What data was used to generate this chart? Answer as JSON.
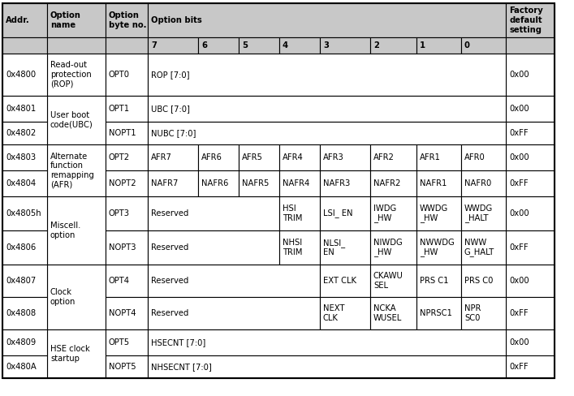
{
  "header_bg": "#C8C8C8",
  "cell_bg": "#FFFFFF",
  "border_color": "#000000",
  "text_color": "#000000",
  "font_size": 7.2,
  "rows": [
    {
      "addr": "0x4800",
      "name": "Read-out\nprotection\n(ROP)",
      "opt": "OPT0",
      "b7": "ROP [7:0]",
      "b6": "",
      "b5": "",
      "b4": "",
      "b3": "",
      "b2": "",
      "b1": "",
      "b0": "",
      "default": "0x00",
      "span7": true,
      "rowspan_name": 1
    },
    {
      "addr": "0x4801",
      "name": "User boot\ncode(UBC)",
      "opt": "OPT1",
      "b7": "UBC [7:0]",
      "b6": "",
      "b5": "",
      "b4": "",
      "b3": "",
      "b2": "",
      "b1": "",
      "b0": "",
      "default": "0x00",
      "span7": true,
      "rowspan_name": 2
    },
    {
      "addr": "0x4802",
      "name": "",
      "opt": "NOPT1",
      "b7": "NUBC [7:0]",
      "b6": "",
      "b5": "",
      "b4": "",
      "b3": "",
      "b2": "",
      "b1": "",
      "b0": "",
      "default": "0xFF",
      "span7": true,
      "rowspan_name": 0
    },
    {
      "addr": "0x4803",
      "name": "Alternate\nfunction\nremapping\n(AFR)",
      "opt": "OPT2",
      "b7": "AFR7",
      "b6": "AFR6",
      "b5": "AFR5",
      "b4": "AFR4",
      "b3": "AFR3",
      "b2": "AFR2",
      "b1": "AFR1",
      "b0": "AFR0",
      "default": "0x00",
      "span7": false,
      "rowspan_name": 2
    },
    {
      "addr": "0x4804",
      "name": "",
      "opt": "NOPT2",
      "b7": "NAFR7",
      "b6": "NAFR6",
      "b5": "NAFR5",
      "b4": "NAFR4",
      "b3": "NAFR3",
      "b2": "NAFR2",
      "b1": "NAFR1",
      "b0": "NAFR0",
      "default": "0xFF",
      "span7": false,
      "rowspan_name": 0
    },
    {
      "addr": "0x4805h",
      "name": "Miscell.\noption",
      "opt": "OPT3",
      "b7": "Reserved",
      "b6": "",
      "b5": "",
      "b4": "HSI\nTRIM",
      "b3": "LSI_ EN",
      "b2": "IWDG\n_HW",
      "b1": "WWDG\n_HW",
      "b0": "WWDG\n_HALT",
      "default": "0x00",
      "span7": false,
      "span_reserved": true,
      "reserved_span": 3,
      "rowspan_name": 2
    },
    {
      "addr": "0x4806",
      "name": "",
      "opt": "NOPT3",
      "b7": "Reserved",
      "b6": "",
      "b5": "",
      "b4": "NHSI\nTRIM",
      "b3": "NLSI_\nEN",
      "b2": "NIWDG\n_HW",
      "b1": "NWWDG\n_HW",
      "b0": "NWW\nG_HALT",
      "default": "0xFF",
      "span7": false,
      "span_reserved": true,
      "reserved_span": 3,
      "rowspan_name": 0
    },
    {
      "addr": "0x4807",
      "name": "Clock\noption",
      "opt": "OPT4",
      "b7": "Reserved",
      "b6": "",
      "b5": "",
      "b4": "",
      "b3": "EXT CLK",
      "b2": "CKAWU\nSEL",
      "b1": "PRS C1",
      "b0": "PRS C0",
      "default": "0x00",
      "span7": false,
      "span_reserved": true,
      "reserved_span": 4,
      "rowspan_name": 2
    },
    {
      "addr": "0x4808",
      "name": "",
      "opt": "NOPT4",
      "b7": "Reserved",
      "b6": "",
      "b5": "",
      "b4": "",
      "b3": "NEXT\nCLK",
      "b2": "NCKA\nWUSEL",
      "b1": "NPRSC1",
      "b0": "NPR\nSC0",
      "default": "0xFF",
      "span7": false,
      "span_reserved": true,
      "reserved_span": 4,
      "rowspan_name": 0
    },
    {
      "addr": "0x4809",
      "name": "HSE clock\nstartup",
      "opt": "OPT5",
      "b7": "HSECNT [7:0]",
      "b6": "",
      "b5": "",
      "b4": "",
      "b3": "",
      "b2": "",
      "b1": "",
      "b0": "",
      "default": "0x00",
      "span7": true,
      "rowspan_name": 2
    },
    {
      "addr": "0x480A",
      "name": "",
      "opt": "NOPT5",
      "b7": "NHSECNT [7:0]",
      "b6": "",
      "b5": "",
      "b4": "",
      "b3": "",
      "b2": "",
      "b1": "",
      "b0": "",
      "default": "0xFF",
      "span7": true,
      "rowspan_name": 0
    }
  ]
}
